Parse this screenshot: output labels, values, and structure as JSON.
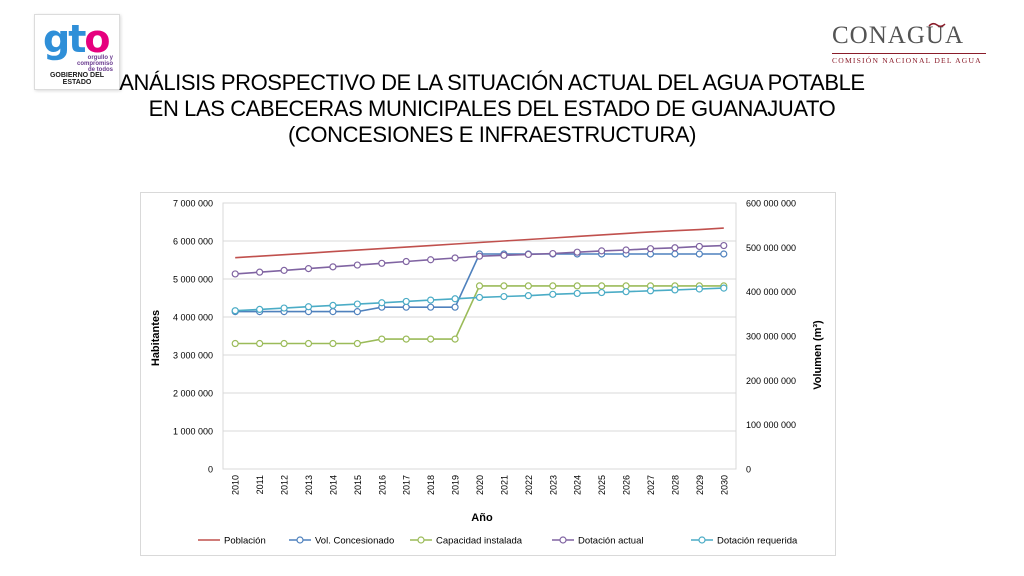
{
  "logos": {
    "gto": {
      "word": "gto",
      "tagline": "orgullo y compromiso de todos",
      "government": "GOBIERNO DEL ESTADO"
    },
    "conagua": {
      "word": "CONAGUA",
      "subtitle": "COMISIÓN NACIONAL DEL AGUA"
    }
  },
  "title_lines": [
    "ANÁLISIS PROSPECTIVO DE LA SITUACIÓN ACTUAL DEL AGUA POTABLE",
    "EN LAS CABECERAS MUNICIPALES DEL ESTADO DE GUANAJUATO",
    "(CONCESIONES E INFRAESTRUCTURA)"
  ],
  "colors": {
    "poblacion": "#c0504d",
    "vol_concesionado": "#4f81bd",
    "capacidad_instalada": "#9bbb59",
    "dotacion_actual": "#8064a2",
    "dotacion_requerida": "#4bacc6",
    "grid": "#d9d9d9"
  },
  "chart_data": {
    "type": "line",
    "xlabel": "Año",
    "ylabel": "Habitantes",
    "y2label": "Volumen (m³)",
    "ylim": [
      0,
      7000000
    ],
    "y2lim": [
      0,
      600000000
    ],
    "ytick_labels": [
      "0",
      "1 000 000",
      "2 000 000",
      "3 000 000",
      "4 000 000",
      "5 000 000",
      "6 000 000",
      "7 000 000"
    ],
    "y2tick_labels": [
      "0",
      "100 000 000",
      "200 000 000",
      "300 000 000",
      "400 000 000",
      "500 000 000",
      "600 000 000"
    ],
    "grid": true,
    "legend_position": "bottom",
    "x": [
      "2010",
      "2011",
      "2012",
      "2013",
      "2014",
      "2015",
      "2016",
      "2017",
      "2018",
      "2019",
      "2020",
      "2021",
      "2022",
      "2023",
      "2024",
      "2025",
      "2026",
      "2027",
      "2028",
      "2029",
      "2030"
    ],
    "series": [
      {
        "name": "Población",
        "axis": "left",
        "markers": false,
        "color_key": "poblacion",
        "values": [
          5560000,
          5600000,
          5640000,
          5680000,
          5720000,
          5760000,
          5800000,
          5840000,
          5880000,
          5920000,
          5960000,
          6000000,
          6040000,
          6080000,
          6120000,
          6160000,
          6200000,
          6240000,
          6270000,
          6300000,
          6340000
        ]
      },
      {
        "name": "Vol. Concesionado",
        "axis": "right",
        "markers": true,
        "color_key": "vol_concesionado",
        "values": [
          355000000,
          355000000,
          355000000,
          355000000,
          355000000,
          355000000,
          365000000,
          365000000,
          365000000,
          365000000,
          485000000,
          485000000,
          485000000,
          485000000,
          485000000,
          485000000,
          485000000,
          485000000,
          485000000,
          485000000,
          485000000
        ]
      },
      {
        "name": "Capacidad instalada",
        "axis": "right",
        "markers": true,
        "color_key": "capacidad_instalada",
        "values": [
          283000000,
          283000000,
          283000000,
          283000000,
          283000000,
          283000000,
          293000000,
          293000000,
          293000000,
          293000000,
          413000000,
          413000000,
          413000000,
          413000000,
          413000000,
          413000000,
          413000000,
          413000000,
          413000000,
          413000000,
          413000000
        ]
      },
      {
        "name": "Dotación actual",
        "axis": "right",
        "markers": true,
        "color_key": "dotacion_actual",
        "values": [
          440000000,
          444000000,
          448000000,
          452000000,
          456000000,
          460000000,
          464000000,
          468000000,
          472000000,
          476000000,
          480000000,
          482000000,
          484000000,
          486000000,
          489000000,
          492000000,
          494000000,
          497000000,
          499000000,
          502000000,
          504000000
        ]
      },
      {
        "name": "Dotación requerida",
        "axis": "right",
        "markers": true,
        "color_key": "dotacion_requerida",
        "values": [
          357000000,
          360000000,
          363000000,
          366000000,
          369000000,
          372000000,
          375000000,
          378000000,
          381000000,
          384000000,
          387000000,
          389000000,
          391000000,
          394000000,
          396000000,
          398000000,
          400000000,
          402000000,
          404000000,
          406000000,
          408000000
        ]
      }
    ]
  }
}
